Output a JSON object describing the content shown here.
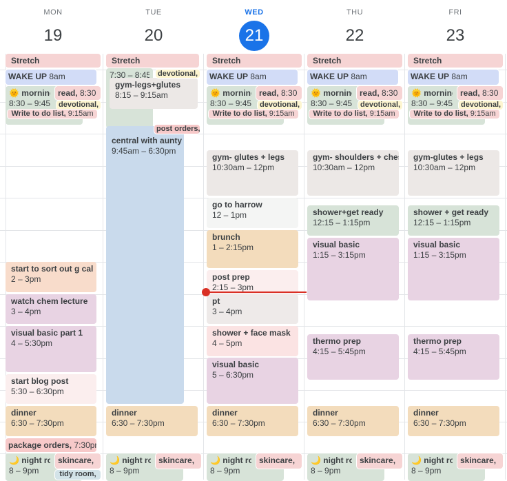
{
  "colors": {
    "today": "#1a73e8",
    "now_line": "#d93025"
  },
  "days": [
    {
      "dow": "MON",
      "num": "19",
      "events": [
        {
          "title": "Stretch",
          "time": "",
          "color": "#f6d4d4"
        },
        {
          "title": "WAKE UP",
          "time": "8am",
          "color": "#d2dcf7"
        },
        {
          "title": "🌞 morning",
          "time": "8:30 – 9:45",
          "color": "#d7e3d8"
        },
        {
          "title": "read,",
          "time": "8:30",
          "color": "#f6d4d4"
        },
        {
          "title": "devotional,",
          "time": "",
          "color": "#fdf5d0"
        },
        {
          "title": "Write to do list,",
          "time": "9:15am",
          "color": "#f6d4d4"
        },
        {
          "title": "start to sort out g cal",
          "time": "2 – 3pm",
          "color": "#f8dccb"
        },
        {
          "title": "watch chem lecture",
          "time": "3 – 4pm",
          "color": "#e8d3e3"
        },
        {
          "title": "visual basic part 1",
          "time": "4 – 5:30pm",
          "color": "#e8d3e3"
        },
        {
          "title": "start blog post",
          "time": "5:30 – 6:30pm",
          "color": "#fbeeee"
        },
        {
          "title": "dinner",
          "time": "6:30 – 7:30pm",
          "color": "#f3dcbc"
        },
        {
          "title": "package orders,",
          "time": "7:30pm",
          "color": "#f7c9c9"
        },
        {
          "title": "🌙 night ro",
          "time": "8 – 9pm",
          "color": "#d7e3d8"
        },
        {
          "title": "skincare,",
          "time": "",
          "color": "#f6d4d4"
        },
        {
          "title": "tidy room,",
          "time": "",
          "color": "#d3e3e8"
        }
      ]
    },
    {
      "dow": "TUE",
      "num": "20",
      "events": [
        {
          "title": "Stretch",
          "time": "",
          "color": "#f6d4d4"
        },
        {
          "title": "",
          "time": "7:30 – 8:45",
          "color": "#d7e3d8"
        },
        {
          "title": "devotional,",
          "time": "",
          "color": "#fdf5d0"
        },
        {
          "title": "gym-legs+glutes",
          "time": "8:15 – 9:15am",
          "color": "#ece8e6"
        },
        {
          "title": "central with aunty + funlola",
          "time": "9:45am – 6:30pm",
          "color": "#c9daec"
        },
        {
          "title": "post orders,",
          "time": "",
          "color": "#f7c9c9"
        },
        {
          "title": "dinner",
          "time": "6:30 – 7:30pm",
          "color": "#f3dcbc"
        },
        {
          "title": "🌙 night ro",
          "time": "8 – 9pm",
          "color": "#d7e3d8"
        },
        {
          "title": "skincare,",
          "time": "",
          "color": "#f6d4d4"
        }
      ]
    },
    {
      "dow": "WED",
      "num": "21",
      "events": [
        {
          "title": "Stretch",
          "time": "",
          "color": "#f6d4d4"
        },
        {
          "title": "WAKE UP",
          "time": "8am",
          "color": "#d2dcf7"
        },
        {
          "title": "🌞 morning",
          "time": "8:30 – 9:45",
          "color": "#d7e3d8"
        },
        {
          "title": "read,",
          "time": "8:30",
          "color": "#f6d4d4"
        },
        {
          "title": "devotional,",
          "time": "",
          "color": "#fdf5d0"
        },
        {
          "title": "Write to do list,",
          "time": "9:15am",
          "color": "#f6d4d4"
        },
        {
          "title": "gym- glutes + legs",
          "time": "10:30am – 12pm",
          "color": "#ece8e6"
        },
        {
          "title": "go to harrow",
          "time": "12 – 1pm",
          "color": "#f4f5f4"
        },
        {
          "title": "brunch",
          "time": "1 – 2:15pm",
          "color": "#f3dcbc"
        },
        {
          "title": "post prep",
          "time": "2:15 – 3pm",
          "color": "#fbeeee"
        },
        {
          "title": "pt",
          "time": "3 – 4pm",
          "color": "#eeeae9"
        },
        {
          "title": "shower + face mask",
          "time": "4 – 5pm",
          "color": "#fbe3e3"
        },
        {
          "title": "visual basic",
          "time": "5 – 6:30pm",
          "color": "#e8d3e3"
        },
        {
          "title": "dinner",
          "time": "6:30 – 7:30pm",
          "color": "#f3dcbc"
        },
        {
          "title": "🌙 night ro",
          "time": "8 – 9pm",
          "color": "#d7e3d8"
        },
        {
          "title": "skincare,",
          "time": "",
          "color": "#f6d4d4"
        }
      ]
    },
    {
      "dow": "THU",
      "num": "22",
      "events": [
        {
          "title": "Stretch",
          "time": "",
          "color": "#f6d4d4"
        },
        {
          "title": "WAKE UP",
          "time": "8am",
          "color": "#d2dcf7"
        },
        {
          "title": "🌞 morning",
          "time": "8:30 – 9:45",
          "color": "#d7e3d8"
        },
        {
          "title": "read,",
          "time": "8:30",
          "color": "#f6d4d4"
        },
        {
          "title": "devotional,",
          "time": "",
          "color": "#fdf5d0"
        },
        {
          "title": "Write to do list,",
          "time": "9:15am",
          "color": "#f6d4d4"
        },
        {
          "title": "gym- shoulders + chest",
          "time": "10:30am – 12pm",
          "color": "#ece8e6"
        },
        {
          "title": "shower+get ready",
          "time": "12:15 – 1:15pm",
          "color": "#d7e3d8"
        },
        {
          "title": "visual basic",
          "time": "1:15 – 3:15pm",
          "color": "#e8d3e3"
        },
        {
          "title": "thermo prep",
          "time": "4:15 – 5:45pm",
          "color": "#e8d3e3"
        },
        {
          "title": "dinner",
          "time": "6:30 – 7:30pm",
          "color": "#f3dcbc"
        },
        {
          "title": "🌙 night ro",
          "time": "8 – 9pm",
          "color": "#d7e3d8"
        },
        {
          "title": "skincare,",
          "time": "",
          "color": "#f6d4d4"
        }
      ]
    },
    {
      "dow": "FRI",
      "num": "23",
      "events": [
        {
          "title": "Stretch",
          "time": "",
          "color": "#f6d4d4"
        },
        {
          "title": "WAKE UP",
          "time": "8am",
          "color": "#d2dcf7"
        },
        {
          "title": "🌞 morning",
          "time": "8:30 – 9:45",
          "color": "#d7e3d8"
        },
        {
          "title": "read,",
          "time": "8:30",
          "color": "#f6d4d4"
        },
        {
          "title": "devotional,",
          "time": "",
          "color": "#fdf5d0"
        },
        {
          "title": "Write to do list,",
          "time": "9:15am",
          "color": "#f6d4d4"
        },
        {
          "title": "gym-glutes + legs",
          "time": "10:30am – 12pm",
          "color": "#ece8e6"
        },
        {
          "title": "shower + get ready",
          "time": "12:15 – 1:15pm",
          "color": "#d7e3d8"
        },
        {
          "title": "visual basic",
          "time": "1:15 – 3:15pm",
          "color": "#e8d3e3"
        },
        {
          "title": "thermo prep",
          "time": "4:15 – 5:45pm",
          "color": "#e8d3e3"
        },
        {
          "title": "dinner",
          "time": "6:30 – 7:30pm",
          "color": "#f3dcbc"
        },
        {
          "title": "🌙 night ro",
          "time": "8 – 9pm",
          "color": "#d7e3d8"
        },
        {
          "title": "skincare,",
          "time": "",
          "color": "#f6d4d4"
        }
      ]
    }
  ]
}
